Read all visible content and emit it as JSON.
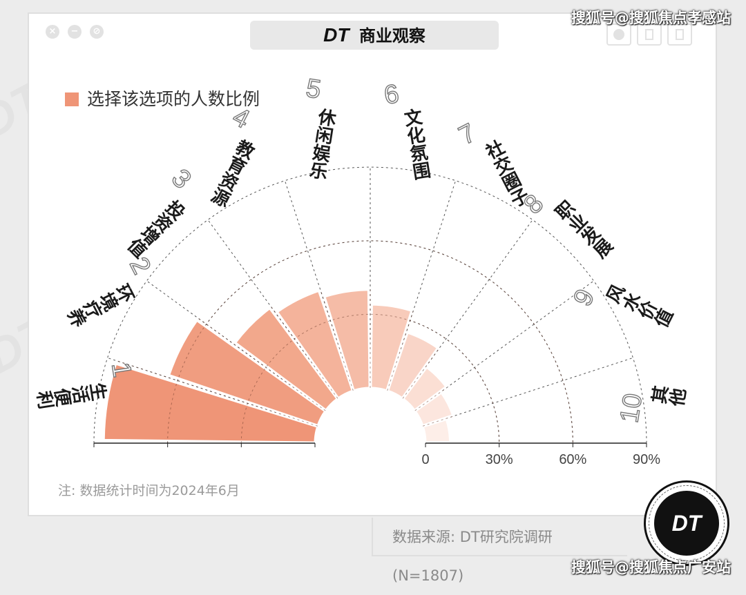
{
  "header": {
    "logo": "DT",
    "title": "商业观察"
  },
  "legend": {
    "label": "选择该选项的人数比例",
    "color": "#ef9577"
  },
  "note": "注: 数据统计时间为2024年6月",
  "source": "数据来源: DT研究院调研 (N=1807)",
  "badge": "DT",
  "watermarks": {
    "top": "搜狐号@搜狐焦点孝感站",
    "bottom": "搜狐号@搜狐焦点广安站"
  },
  "chart_data": {
    "type": "polar-bar",
    "ylim": [
      0,
      90
    ],
    "ticks": [
      "0",
      "30%",
      "60%",
      "90%"
    ],
    "categories": [
      {
        "rank": "1",
        "label": "生活便利",
        "value": 86,
        "color": "#ef9577"
      },
      {
        "rank": "2",
        "label": "环境疗养",
        "value": 64,
        "color": "#f09d80"
      },
      {
        "rank": "3",
        "label": "投资增值",
        "value": 46,
        "color": "#f2a88c"
      },
      {
        "rank": "4",
        "label": "教育资源",
        "value": 43,
        "color": "#f4b39b"
      },
      {
        "rank": "5",
        "label": "休闲娱乐",
        "value": 40,
        "color": "#f5bca7"
      },
      {
        "rank": "6",
        "label": "文化氛围",
        "value": 34,
        "color": "#f8cbba"
      },
      {
        "rank": "7",
        "label": "社交圈子",
        "value": 25,
        "color": "#f9d5c8"
      },
      {
        "rank": "8",
        "label": "职业发展",
        "value": 16,
        "color": "#fbdfd4"
      },
      {
        "rank": "9",
        "label": "风水价值",
        "value": 13,
        "color": "#fce6de"
      },
      {
        "rank": "10",
        "label": "其他",
        "value": 10,
        "color": "#fdeee8"
      }
    ]
  }
}
